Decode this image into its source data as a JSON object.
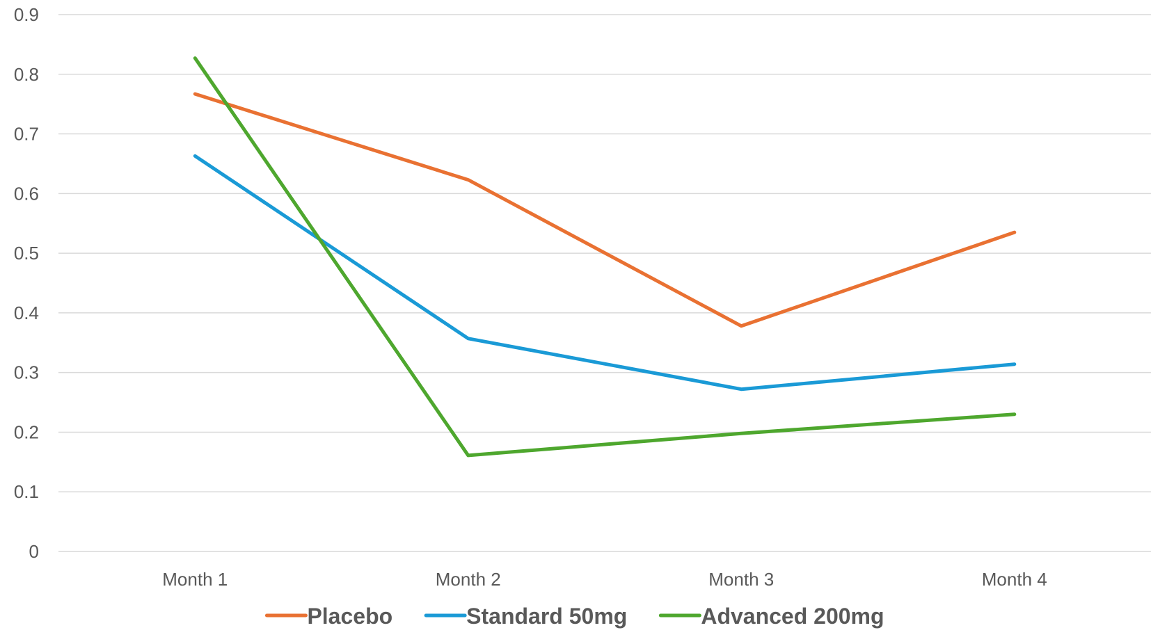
{
  "chart_data": {
    "type": "line",
    "categories": [
      "Month 1",
      "Month 2",
      "Month 3",
      "Month 4"
    ],
    "series": [
      {
        "name": "Placebo",
        "color": "#E97132",
        "values": [
          0.767,
          0.623,
          0.378,
          0.535
        ]
      },
      {
        "name": "Standard 50mg",
        "color": "#1A9AD6",
        "values": [
          0.663,
          0.357,
          0.272,
          0.314
        ]
      },
      {
        "name": "Advanced 200mg",
        "color": "#4EA72E",
        "values": [
          0.827,
          0.161,
          0.198,
          0.23
        ]
      }
    ],
    "y_ticks": [
      "0",
      "0.1",
      "0.2",
      "0.3",
      "0.4",
      "0.5",
      "0.6",
      "0.7",
      "0.8",
      "0.9"
    ],
    "ylim": [
      0,
      0.9
    ],
    "grid": true,
    "legend_position": "bottom",
    "gridline_color": "#D9D9D9",
    "text_color": "#595959"
  }
}
